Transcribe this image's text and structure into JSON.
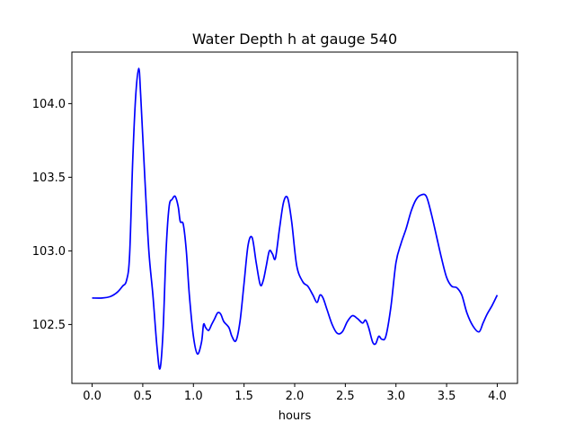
{
  "chart_data": {
    "type": "line",
    "title": "Water Depth h at gauge 540",
    "xlabel": "hours",
    "ylabel": "",
    "xlim": [
      -0.2,
      4.2
    ],
    "ylim": [
      102.1,
      104.35
    ],
    "grid": false,
    "legend": "none",
    "x_ticks": [
      0.0,
      0.5,
      1.0,
      1.5,
      2.0,
      2.5,
      3.0,
      3.5,
      4.0
    ],
    "x_tick_labels": [
      "0.0",
      "0.5",
      "1.0",
      "1.5",
      "2.0",
      "2.5",
      "3.0",
      "3.5",
      "4.0"
    ],
    "y_ticks": [
      102.5,
      103.0,
      103.5,
      104.0
    ],
    "y_tick_labels": [
      "102.5",
      "103.0",
      "103.5",
      "104.0"
    ],
    "series": [
      {
        "color": "#0000ff",
        "x": [
          0.0,
          0.1,
          0.18,
          0.25,
          0.3,
          0.34,
          0.37,
          0.4,
          0.43,
          0.46,
          0.48,
          0.52,
          0.56,
          0.6,
          0.64,
          0.67,
          0.7,
          0.73,
          0.76,
          0.79,
          0.82,
          0.85,
          0.87,
          0.9,
          0.93,
          0.96,
          1.0,
          1.04,
          1.08,
          1.1,
          1.12,
          1.15,
          1.18,
          1.21,
          1.24,
          1.27,
          1.3,
          1.35,
          1.38,
          1.42,
          1.46,
          1.5,
          1.54,
          1.58,
          1.62,
          1.66,
          1.69,
          1.72,
          1.75,
          1.78,
          1.81,
          1.85,
          1.89,
          1.93,
          1.97,
          2.02,
          2.08,
          2.13,
          2.18,
          2.22,
          2.25,
          2.28,
          2.32,
          2.37,
          2.42,
          2.47,
          2.52,
          2.57,
          2.62,
          2.67,
          2.7,
          2.73,
          2.77,
          2.8,
          2.83,
          2.86,
          2.9,
          2.95,
          3.0,
          3.05,
          3.1,
          3.15,
          3.2,
          3.25,
          3.3,
          3.35,
          3.4,
          3.45,
          3.5,
          3.55,
          3.6,
          3.65,
          3.7,
          3.76,
          3.82,
          3.86,
          3.9,
          3.95,
          4.0
        ],
        "y": [
          102.68,
          102.68,
          102.69,
          102.72,
          102.76,
          102.8,
          102.97,
          103.6,
          104.05,
          104.24,
          104.05,
          103.5,
          103.0,
          102.7,
          102.35,
          102.2,
          102.45,
          103.0,
          103.3,
          103.35,
          103.37,
          103.3,
          103.2,
          103.18,
          103.0,
          102.7,
          102.42,
          102.3,
          102.38,
          102.5,
          102.48,
          102.46,
          102.5,
          102.54,
          102.58,
          102.57,
          102.52,
          102.48,
          102.42,
          102.39,
          102.52,
          102.78,
          103.04,
          103.09,
          102.92,
          102.77,
          102.8,
          102.9,
          103.0,
          102.98,
          102.95,
          103.15,
          103.33,
          103.36,
          103.2,
          102.9,
          102.79,
          102.76,
          102.7,
          102.65,
          102.7,
          102.68,
          102.6,
          102.5,
          102.44,
          102.45,
          102.52,
          102.56,
          102.54,
          102.51,
          102.53,
          102.48,
          102.38,
          102.37,
          102.42,
          102.4,
          102.42,
          102.62,
          102.92,
          103.05,
          103.15,
          103.27,
          103.35,
          103.38,
          103.37,
          103.25,
          103.1,
          102.95,
          102.82,
          102.76,
          102.75,
          102.7,
          102.58,
          102.49,
          102.45,
          102.51,
          102.57,
          102.63,
          102.7
        ]
      }
    ]
  }
}
